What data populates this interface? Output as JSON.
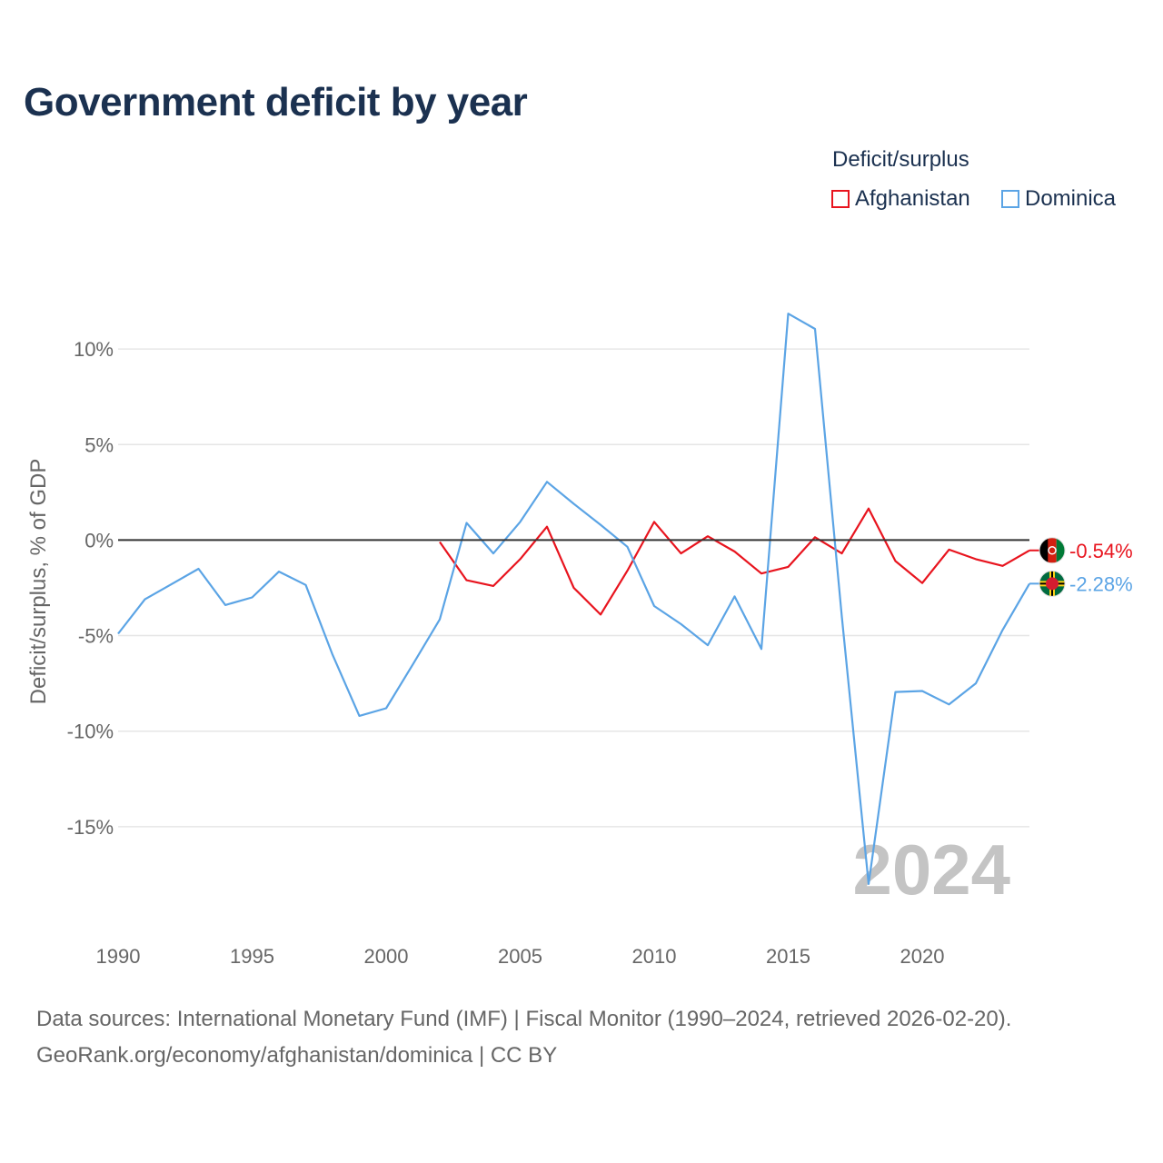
{
  "chart_data": {
    "type": "line",
    "title": "Government deficit by year",
    "ylabel": "Deficit/surplus, % of GDP",
    "xlabel": "",
    "xlim": [
      1990,
      2024
    ],
    "ylim": [
      -20,
      14
    ],
    "x_ticks": [
      1990,
      1995,
      2000,
      2005,
      2010,
      2015,
      2020
    ],
    "x_tick_labels": [
      "1990",
      "1995",
      "2000",
      "2005",
      "2010",
      "2015",
      "2020"
    ],
    "y_ticks": [
      10,
      5,
      0,
      -5,
      -10,
      -15
    ],
    "y_tick_labels": [
      "10%",
      "5%",
      "0%",
      "-5%",
      "-10%",
      "-15%"
    ],
    "legend_title": "Deficit/surplus",
    "legend_position": "top-right",
    "year_watermark": "2024",
    "series": [
      {
        "name": "Afghanistan",
        "color": "#e8141e",
        "end_label": "-0.54%",
        "x": [
          2002,
          2003,
          2004,
          2005,
          2006,
          2007,
          2008,
          2009,
          2010,
          2011,
          2012,
          2013,
          2014,
          2015,
          2016,
          2017,
          2018,
          2019,
          2020,
          2021,
          2022,
          2023,
          2024
        ],
        "values": [
          -0.1,
          -2.1,
          -2.4,
          -1.0,
          0.7,
          -2.5,
          -3.9,
          -1.6,
          0.95,
          -0.7,
          0.2,
          -0.6,
          -1.75,
          -1.4,
          0.15,
          -0.7,
          1.65,
          -1.1,
          -2.25,
          -0.5,
          -1.0,
          -1.35,
          -0.54
        ]
      },
      {
        "name": "Dominica",
        "color": "#5ba4e5",
        "end_label": "-2.28%",
        "x": [
          1990,
          1991,
          1992,
          1993,
          1994,
          1995,
          1996,
          1997,
          1998,
          1999,
          2000,
          2001,
          2002,
          2003,
          2004,
          2005,
          2006,
          2007,
          2008,
          2009,
          2010,
          2011,
          2012,
          2013,
          2014,
          2015,
          2016,
          2017,
          2018,
          2019,
          2020,
          2021,
          2022,
          2023,
          2024
        ],
        "values": [
          -4.9,
          -3.1,
          -2.3,
          -1.5,
          -3.4,
          -3.0,
          -1.65,
          -2.35,
          -6.0,
          -9.2,
          -8.8,
          -6.5,
          -4.15,
          0.9,
          -0.7,
          0.95,
          3.05,
          1.9,
          0.8,
          -0.35,
          -3.45,
          -4.4,
          -5.5,
          -2.95,
          -5.7,
          11.85,
          11.05,
          -4.0,
          -18.0,
          -7.95,
          -7.9,
          -8.6,
          -7.5,
          -4.7,
          -2.28
        ]
      }
    ]
  },
  "footer": {
    "source": "Data sources: International Monetary Fund (IMF) | Fiscal Monitor (1990–2024, retrieved 2026-02-20).",
    "site": "GeoRank.org/economy/afghanistan/dominica | CC BY"
  }
}
